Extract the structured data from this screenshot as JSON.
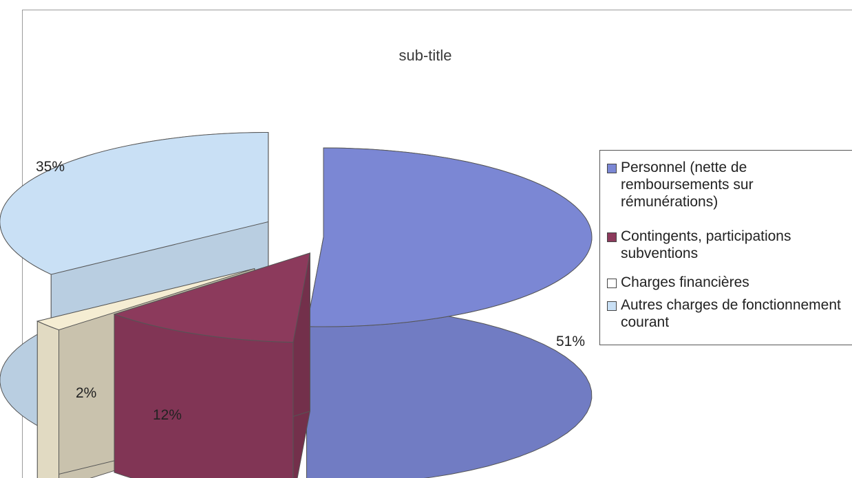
{
  "chart_data": {
    "type": "pie",
    "title": "sub-title",
    "categories": [
      "Personnel (nette de remboursements sur rémunérations)",
      "Contingents, participations subventions",
      "Charges financières",
      "Autres charges de fonctionnement courant"
    ],
    "values": [
      51,
      12,
      2,
      35
    ],
    "data_labels": [
      "51%",
      "12%",
      "2%",
      "35%"
    ],
    "legend_position": "right",
    "colors": [
      "#7b87d4",
      "#8c3a5c",
      "#f5edd3",
      "#c9e0f5"
    ],
    "style": "3D exploded pie"
  },
  "legend": {
    "items": [
      {
        "label": "Personnel (nette de remboursements sur rémunérations)",
        "color": "#7b87d4"
      },
      {
        "label": "Contingents, participations subventions",
        "color": "#8c3a5c"
      },
      {
        "label": "Charges financières",
        "color": "#ffffff"
      },
      {
        "label": "Autres charges de fonctionnement courant",
        "color": "#c9e0f5"
      }
    ]
  }
}
